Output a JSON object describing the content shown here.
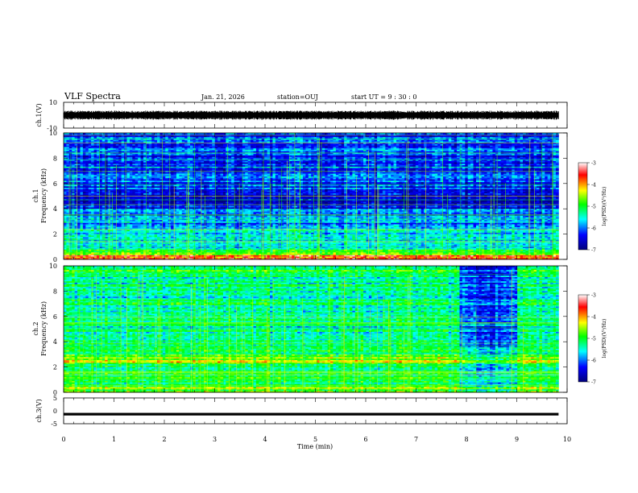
{
  "header": {
    "title": "VLF Spectra",
    "date": "Jan. 21, 2026",
    "station": "station=OUJ",
    "start_ut": "start UT =  9 : 30 : 0"
  },
  "chart_data": [
    {
      "type": "line",
      "id": "ch1-waveform",
      "ylabel": "ch.1(V)",
      "ylim": [
        -10,
        10
      ],
      "yticks": [
        "10",
        "-10"
      ],
      "xlim": [
        0,
        10
      ],
      "x_end": 9.83,
      "baseline": 0,
      "amplitude": 3.5
    },
    {
      "type": "heatmap",
      "id": "ch1-spectrogram",
      "channel_label": "ch.1",
      "ylabel": "Frequency (kHz)",
      "ylim": [
        0,
        10
      ],
      "yticks": [
        "0",
        "2",
        "4",
        "6",
        "8",
        "10"
      ],
      "xlim": [
        0,
        10
      ],
      "x_end": 9.83,
      "colorbar": {
        "label": "log(PSD)(V²/Hz)",
        "range": [
          -7,
          -3
        ],
        "ticks": [
          "-3",
          "-4",
          "-5",
          "-6",
          "-7"
        ],
        "colors": [
          "#00007a",
          "#0000ff",
          "#00ffff",
          "#00ff00",
          "#ffff00",
          "#ff0000",
          "#ffffff"
        ]
      }
    },
    {
      "type": "heatmap",
      "id": "ch2-spectrogram",
      "channel_label": "ch.2",
      "ylabel": "Frequency (kHz)",
      "ylim": [
        0,
        10
      ],
      "yticks": [
        "0",
        "2",
        "4",
        "6",
        "8",
        "10"
      ],
      "xlim": [
        0,
        10
      ],
      "x_end": 9.83,
      "quiet_interval": [
        7.85,
        9.0
      ],
      "colorbar": {
        "label": "log(PSD)(V²/Hz)",
        "range": [
          -7,
          -3
        ],
        "ticks": [
          "-3",
          "-4",
          "-5",
          "-6",
          "-7"
        ],
        "colors": [
          "#00007a",
          "#0000ff",
          "#00ffff",
          "#00ff00",
          "#ffff00",
          "#ff0000",
          "#ffffff"
        ]
      }
    },
    {
      "type": "line",
      "id": "ch3-waveform",
      "ylabel": "ch.3(V)",
      "ylim": [
        -5,
        5
      ],
      "yticks": [
        "5",
        "0",
        "-5"
      ],
      "xlim": [
        0,
        10
      ],
      "x_end": 9.83,
      "baseline": -1.3,
      "amplitude": 0.2
    }
  ],
  "x_axis": {
    "label": "Time (min)",
    "ticks": [
      "0",
      "1",
      "2",
      "3",
      "4",
      "5",
      "6",
      "7",
      "8",
      "9",
      "10"
    ]
  }
}
